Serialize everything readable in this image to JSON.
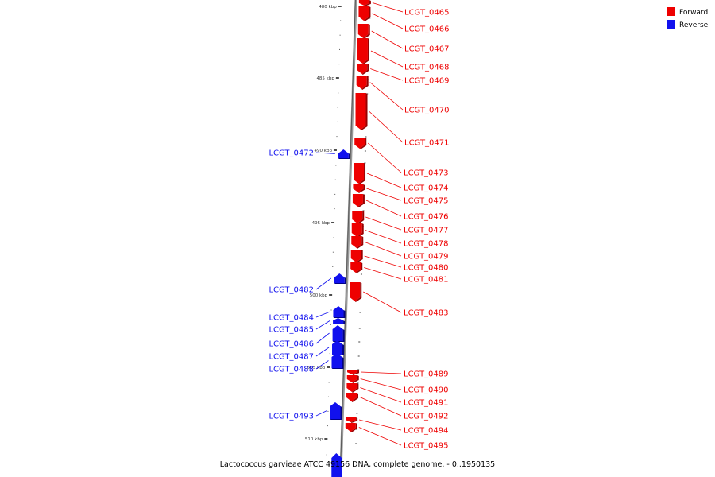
{
  "legend": {
    "forward": {
      "label": "Forward",
      "color": "#ee0000"
    },
    "reverse": {
      "label": "Reverse",
      "color": "#1111ee"
    }
  },
  "caption": "Lactococcus garvieae ATCC 49156 DNA, complete genome. - 0..1950135",
  "ruler_ticks": [
    {
      "label": "480 kbp"
    },
    {
      "label": "485 kbp"
    },
    {
      "label": "490 kbp"
    },
    {
      "label": "495 kbp"
    },
    {
      "label": "500 kbp"
    },
    {
      "label": "505 kbp"
    },
    {
      "label": "510 kbp"
    }
  ],
  "genes": [
    {
      "name": "LCGT_0465",
      "strand": "forward"
    },
    {
      "name": "LCGT_0466",
      "strand": "forward"
    },
    {
      "name": "LCGT_0467",
      "strand": "forward"
    },
    {
      "name": "LCGT_0468",
      "strand": "forward"
    },
    {
      "name": "LCGT_0469",
      "strand": "forward"
    },
    {
      "name": "LCGT_0470",
      "strand": "forward"
    },
    {
      "name": "LCGT_0471",
      "strand": "forward"
    },
    {
      "name": "LCGT_0472",
      "strand": "reverse"
    },
    {
      "name": "LCGT_0473",
      "strand": "forward"
    },
    {
      "name": "LCGT_0474",
      "strand": "forward"
    },
    {
      "name": "LCGT_0475",
      "strand": "forward"
    },
    {
      "name": "LCGT_0476",
      "strand": "forward"
    },
    {
      "name": "LCGT_0477",
      "strand": "forward"
    },
    {
      "name": "LCGT_0478",
      "strand": "forward"
    },
    {
      "name": "LCGT_0479",
      "strand": "forward"
    },
    {
      "name": "LCGT_0480",
      "strand": "forward"
    },
    {
      "name": "LCGT_0481",
      "strand": "forward"
    },
    {
      "name": "LCGT_0482",
      "strand": "reverse"
    },
    {
      "name": "LCGT_0483",
      "strand": "forward"
    },
    {
      "name": "LCGT_0484",
      "strand": "reverse"
    },
    {
      "name": "LCGT_0485",
      "strand": "reverse"
    },
    {
      "name": "LCGT_0486",
      "strand": "reverse"
    },
    {
      "name": "LCGT_0487",
      "strand": "reverse"
    },
    {
      "name": "LCGT_0488",
      "strand": "reverse"
    },
    {
      "name": "LCGT_0489",
      "strand": "forward"
    },
    {
      "name": "LCGT_0490",
      "strand": "forward"
    },
    {
      "name": "LCGT_0491",
      "strand": "forward"
    },
    {
      "name": "LCGT_0492",
      "strand": "forward"
    },
    {
      "name": "LCGT_0493",
      "strand": "reverse"
    },
    {
      "name": "LCGT_0494",
      "strand": "forward"
    },
    {
      "name": "LCGT_0495",
      "strand": "forward"
    }
  ]
}
